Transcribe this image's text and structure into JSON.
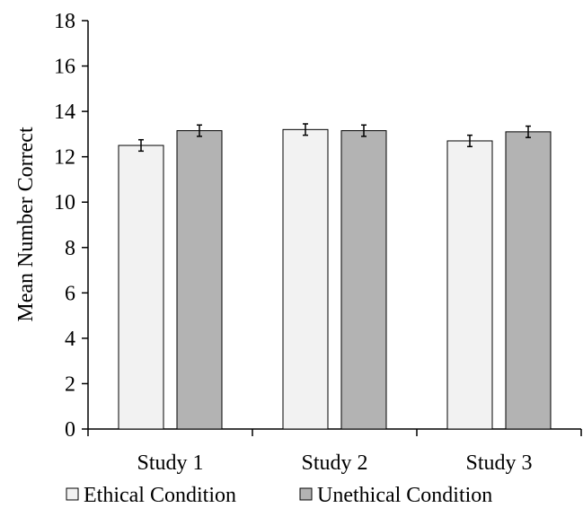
{
  "chart_data": {
    "type": "bar",
    "title": "",
    "xlabel": "",
    "ylabel": "Mean Number Correct",
    "ylim": [
      0,
      18
    ],
    "yticks": [
      0,
      2,
      4,
      6,
      8,
      10,
      12,
      14,
      16,
      18
    ],
    "categories": [
      "Study 1",
      "Study 2",
      "Study 3"
    ],
    "series": [
      {
        "name": "Ethical Condition",
        "values": [
          12.5,
          13.2,
          12.7
        ],
        "errors": [
          0.25,
          0.25,
          0.25
        ],
        "color": "#f2f2f2"
      },
      {
        "name": "Unethical Condition",
        "values": [
          13.15,
          13.15,
          13.1
        ],
        "errors": [
          0.25,
          0.25,
          0.25
        ],
        "color": "#b3b3b3"
      }
    ],
    "grid": false,
    "legend_position": "bottom"
  }
}
